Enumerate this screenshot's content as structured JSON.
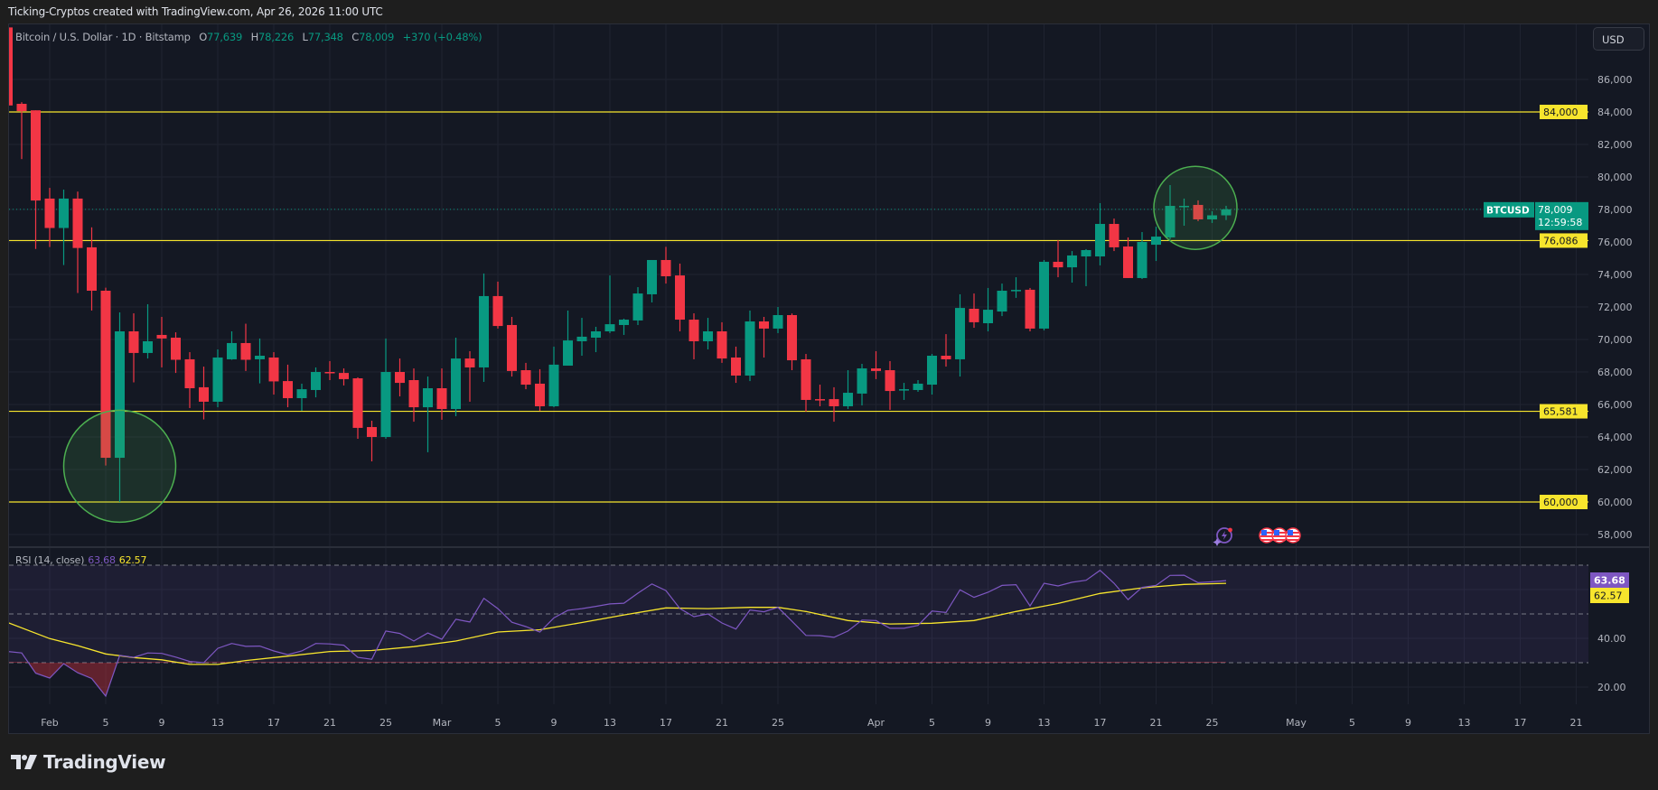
{
  "header": {
    "title": "Ticking-Cryptos created with TradingView.com, Apr 26, 2026 11:00 UTC"
  },
  "legend": {
    "symbol": "Bitcoin / U.S. Dollar · 1D · Bitstamp",
    "o_label": "O",
    "o": "77,639",
    "h_label": "H",
    "h": "78,226",
    "l_label": "L",
    "l": "77,348",
    "c_label": "C",
    "c": "78,009",
    "change": "+370 (+0.48%)"
  },
  "currency_button": "USD",
  "price_tag": {
    "symbol": "BTCUSD",
    "price": "78,009",
    "countdown": "12:59:58"
  },
  "rsi_legend": {
    "name": "RSI (14, close)",
    "rsi": "63.68",
    "ma": "62.57"
  },
  "rsi_tags": {
    "rsi": "63.68",
    "ma": "62.57"
  },
  "footer": {
    "brand": "TradingView"
  },
  "colors": {
    "up": "#089981",
    "down": "#f23645",
    "level": "#f7e52d",
    "rsi": "#7e57c2",
    "rsi_ma": "#f7e52d",
    "highlight": "#4caf50",
    "background": "#141823"
  },
  "icons": [
    "lightning-alert-icon",
    "us-flag-event-icon"
  ],
  "chart_data": {
    "type": "candlestick",
    "symbol": "BTCUSD",
    "price_axis": {
      "ticks": [
        "58,000",
        "60,000",
        "62,000",
        "64,000",
        "66,000",
        "68,000",
        "70,000",
        "72,000",
        "74,000",
        "76,000",
        "78,000",
        "80,000",
        "82,000",
        "84,000",
        "86,000"
      ],
      "ylim": [
        57000,
        87000
      ]
    },
    "horizontal_levels": [
      {
        "value": 84000,
        "label": "84,000"
      },
      {
        "value": 76086,
        "label": "76,086"
      },
      {
        "value": 65581,
        "label": "65,581"
      },
      {
        "value": 60000,
        "label": "60,000"
      }
    ],
    "current_price": 78009,
    "highlight_circles": [
      {
        "date": "2026-02-06",
        "price": 62200
      },
      {
        "date": "2026-04-24",
        "price": 78100
      }
    ],
    "x_ticks": [
      {
        "label": "Feb",
        "date": "2026-02-01"
      },
      {
        "label": "5",
        "date": "2026-02-05"
      },
      {
        "label": "9",
        "date": "2026-02-09"
      },
      {
        "label": "13",
        "date": "2026-02-13"
      },
      {
        "label": "17",
        "date": "2026-02-17"
      },
      {
        "label": "21",
        "date": "2026-02-21"
      },
      {
        "label": "25",
        "date": "2026-02-25"
      },
      {
        "label": "Mar",
        "date": "2026-03-01"
      },
      {
        "label": "5",
        "date": "2026-03-05"
      },
      {
        "label": "9",
        "date": "2026-03-09"
      },
      {
        "label": "13",
        "date": "2026-03-13"
      },
      {
        "label": "17",
        "date": "2026-03-17"
      },
      {
        "label": "21",
        "date": "2026-03-21"
      },
      {
        "label": "25",
        "date": "2026-03-25"
      },
      {
        "label": "Apr",
        "date": "2026-04-01"
      },
      {
        "label": "5",
        "date": "2026-04-05"
      },
      {
        "label": "9",
        "date": "2026-04-09"
      },
      {
        "label": "13",
        "date": "2026-04-13"
      },
      {
        "label": "17",
        "date": "2026-04-17"
      },
      {
        "label": "21",
        "date": "2026-04-21"
      },
      {
        "label": "25",
        "date": "2026-04-25"
      },
      {
        "label": "May",
        "date": "2026-05-01"
      },
      {
        "label": "5",
        "date": "2026-05-05"
      },
      {
        "label": "9",
        "date": "2026-05-09"
      },
      {
        "label": "13",
        "date": "2026-05-13"
      },
      {
        "label": "17",
        "date": "2026-05-17"
      },
      {
        "label": "21",
        "date": "2026-05-21"
      }
    ],
    "rsi_axis": {
      "ticks": [
        "20.00",
        "40.00"
      ],
      "bands": [
        30,
        50,
        70
      ],
      "ylim": [
        12,
        76
      ]
    },
    "candles": [
      {
        "d": "2026-01-29",
        "o": 89200,
        "h": 89500,
        "l": 84000,
        "c": 84400,
        "rsi": 34.6
      },
      {
        "d": "2026-01-30",
        "o": 84500,
        "h": 84600,
        "l": 81100,
        "c": 84050,
        "rsi": 34.0
      },
      {
        "d": "2026-01-31",
        "o": 84100,
        "h": 84100,
        "l": 75570,
        "c": 78550,
        "rsi": 25.7
      },
      {
        "d": "2026-02-01",
        "o": 78670,
        "h": 79330,
        "l": 75690,
        "c": 76860,
        "rsi": 23.7
      },
      {
        "d": "2026-02-02",
        "o": 76860,
        "h": 79220,
        "l": 74580,
        "c": 78670,
        "rsi": 29.6
      },
      {
        "d": "2026-02-03",
        "o": 78670,
        "h": 79100,
        "l": 72860,
        "c": 75630,
        "rsi": 25.9
      },
      {
        "d": "2026-02-04",
        "o": 75670,
        "h": 76900,
        "l": 71780,
        "c": 73000,
        "rsi": 23.5
      },
      {
        "d": "2026-02-05",
        "o": 73000,
        "h": 73190,
        "l": 62240,
        "c": 62720,
        "rsi": 16.3
      },
      {
        "d": "2026-02-06",
        "o": 62720,
        "h": 71670,
        "l": 60000,
        "c": 70500,
        "rsi": 33.0
      },
      {
        "d": "2026-02-07",
        "o": 70500,
        "h": 71610,
        "l": 67360,
        "c": 69170,
        "rsi": 32.2
      },
      {
        "d": "2026-02-08",
        "o": 69170,
        "h": 72170,
        "l": 68830,
        "c": 69890,
        "rsi": 34.0
      },
      {
        "d": "2026-02-09",
        "o": 70280,
        "h": 71390,
        "l": 68280,
        "c": 70060,
        "rsi": 33.8
      },
      {
        "d": "2026-02-10",
        "o": 70110,
        "h": 70440,
        "l": 67940,
        "c": 68750,
        "rsi": 32.3
      },
      {
        "d": "2026-02-11",
        "o": 68780,
        "h": 69220,
        "l": 65780,
        "c": 67000,
        "rsi": 30.5
      },
      {
        "d": "2026-02-12",
        "o": 67060,
        "h": 68330,
        "l": 65080,
        "c": 66170,
        "rsi": 30.0
      },
      {
        "d": "2026-02-13",
        "o": 66170,
        "h": 69390,
        "l": 65830,
        "c": 68890,
        "rsi": 35.9
      },
      {
        "d": "2026-02-14",
        "o": 68780,
        "h": 70500,
        "l": 68750,
        "c": 69780,
        "rsi": 37.9
      },
      {
        "d": "2026-02-15",
        "o": 69780,
        "h": 70970,
        "l": 68060,
        "c": 68750,
        "rsi": 36.7
      },
      {
        "d": "2026-02-16",
        "o": 68780,
        "h": 70060,
        "l": 67300,
        "c": 69000,
        "rsi": 36.8
      },
      {
        "d": "2026-02-17",
        "o": 68890,
        "h": 69220,
        "l": 66610,
        "c": 67420,
        "rsi": 34.8
      },
      {
        "d": "2026-02-18",
        "o": 67440,
        "h": 68450,
        "l": 65830,
        "c": 66390,
        "rsi": 33.3
      },
      {
        "d": "2026-02-19",
        "o": 66390,
        "h": 67280,
        "l": 65610,
        "c": 66940,
        "rsi": 34.8
      },
      {
        "d": "2026-02-20",
        "o": 66890,
        "h": 68280,
        "l": 66440,
        "c": 68000,
        "rsi": 37.9
      },
      {
        "d": "2026-02-21",
        "o": 68000,
        "h": 68670,
        "l": 67500,
        "c": 67970,
        "rsi": 37.7
      },
      {
        "d": "2026-02-22",
        "o": 67940,
        "h": 68220,
        "l": 67170,
        "c": 67560,
        "rsi": 37.2
      },
      {
        "d": "2026-02-23",
        "o": 67610,
        "h": 67670,
        "l": 63890,
        "c": 64560,
        "rsi": 32.2
      },
      {
        "d": "2026-02-24",
        "o": 64610,
        "h": 65000,
        "l": 62500,
        "c": 64000,
        "rsi": 31.4
      },
      {
        "d": "2026-02-25",
        "o": 64000,
        "h": 70060,
        "l": 63890,
        "c": 68000,
        "rsi": 43.0
      },
      {
        "d": "2026-02-26",
        "o": 68000,
        "h": 68830,
        "l": 66500,
        "c": 67330,
        "rsi": 42.0
      },
      {
        "d": "2026-02-27",
        "o": 67500,
        "h": 68220,
        "l": 64940,
        "c": 65830,
        "rsi": 38.9
      },
      {
        "d": "2026-02-28",
        "o": 65830,
        "h": 67720,
        "l": 63060,
        "c": 67000,
        "rsi": 42.2
      },
      {
        "d": "2026-03-01",
        "o": 67000,
        "h": 68220,
        "l": 65060,
        "c": 65720,
        "rsi": 39.6
      },
      {
        "d": "2026-03-02",
        "o": 65720,
        "h": 70110,
        "l": 65280,
        "c": 68830,
        "rsi": 47.8
      },
      {
        "d": "2026-03-03",
        "o": 68830,
        "h": 69280,
        "l": 66170,
        "c": 68280,
        "rsi": 46.7
      },
      {
        "d": "2026-03-04",
        "o": 68280,
        "h": 74060,
        "l": 67390,
        "c": 72670,
        "rsi": 56.4
      },
      {
        "d": "2026-03-05",
        "o": 72670,
        "h": 73560,
        "l": 70670,
        "c": 70830,
        "rsi": 52.2
      },
      {
        "d": "2026-03-06",
        "o": 70890,
        "h": 71390,
        "l": 67720,
        "c": 68060,
        "rsi": 46.6
      },
      {
        "d": "2026-03-07",
        "o": 68110,
        "h": 68560,
        "l": 66940,
        "c": 67220,
        "rsi": 44.8
      },
      {
        "d": "2026-03-08",
        "o": 67280,
        "h": 68170,
        "l": 65610,
        "c": 65890,
        "rsi": 42.6
      },
      {
        "d": "2026-03-09",
        "o": 65890,
        "h": 69560,
        "l": 65830,
        "c": 68450,
        "rsi": 48.4
      },
      {
        "d": "2026-03-10",
        "o": 68390,
        "h": 71780,
        "l": 68390,
        "c": 69940,
        "rsi": 51.5
      },
      {
        "d": "2026-03-11",
        "o": 69890,
        "h": 71330,
        "l": 69000,
        "c": 70170,
        "rsi": 52.2
      },
      {
        "d": "2026-03-12",
        "o": 70110,
        "h": 70780,
        "l": 69220,
        "c": 70500,
        "rsi": 53.1
      },
      {
        "d": "2026-03-13",
        "o": 70500,
        "h": 73940,
        "l": 70390,
        "c": 70940,
        "rsi": 54.1
      },
      {
        "d": "2026-03-14",
        "o": 70890,
        "h": 71280,
        "l": 70280,
        "c": 71220,
        "rsi": 54.4
      },
      {
        "d": "2026-03-15",
        "o": 71170,
        "h": 73220,
        "l": 70890,
        "c": 72830,
        "rsi": 58.5
      },
      {
        "d": "2026-03-16",
        "o": 72780,
        "h": 74890,
        "l": 72280,
        "c": 74890,
        "rsi": 62.3
      },
      {
        "d": "2026-03-17",
        "o": 74890,
        "h": 75700,
        "l": 73440,
        "c": 73890,
        "rsi": 59.6
      },
      {
        "d": "2026-03-18",
        "o": 73940,
        "h": 74670,
        "l": 70500,
        "c": 71220,
        "rsi": 52.2
      },
      {
        "d": "2026-03-19",
        "o": 71220,
        "h": 71610,
        "l": 68780,
        "c": 69890,
        "rsi": 48.9
      },
      {
        "d": "2026-03-20",
        "o": 69890,
        "h": 71330,
        "l": 69390,
        "c": 70500,
        "rsi": 50.0
      },
      {
        "d": "2026-03-21",
        "o": 70500,
        "h": 71060,
        "l": 68560,
        "c": 68830,
        "rsi": 46.3
      },
      {
        "d": "2026-03-22",
        "o": 68890,
        "h": 69560,
        "l": 67330,
        "c": 67780,
        "rsi": 43.8
      },
      {
        "d": "2026-03-23",
        "o": 67780,
        "h": 71780,
        "l": 67440,
        "c": 71110,
        "rsi": 51.6
      },
      {
        "d": "2026-03-24",
        "o": 71110,
        "h": 71390,
        "l": 68890,
        "c": 70670,
        "rsi": 50.9
      },
      {
        "d": "2026-03-25",
        "o": 70670,
        "h": 72000,
        "l": 70390,
        "c": 71500,
        "rsi": 52.7
      },
      {
        "d": "2026-03-26",
        "o": 71500,
        "h": 71600,
        "l": 68110,
        "c": 68720,
        "rsi": 47.0
      },
      {
        "d": "2026-03-27",
        "o": 68780,
        "h": 69110,
        "l": 65560,
        "c": 66280,
        "rsi": 41.2
      },
      {
        "d": "2026-03-28",
        "o": 66330,
        "h": 67220,
        "l": 65890,
        "c": 66280,
        "rsi": 41.1
      },
      {
        "d": "2026-03-29",
        "o": 66330,
        "h": 67060,
        "l": 64940,
        "c": 65890,
        "rsi": 40.4
      },
      {
        "d": "2026-03-30",
        "o": 65890,
        "h": 68110,
        "l": 65720,
        "c": 66720,
        "rsi": 43.0
      },
      {
        "d": "2026-03-31",
        "o": 66670,
        "h": 68500,
        "l": 65940,
        "c": 68220,
        "rsi": 47.5
      },
      {
        "d": "2026-04-01",
        "o": 68220,
        "h": 69280,
        "l": 67560,
        "c": 68060,
        "rsi": 47.3
      },
      {
        "d": "2026-04-02",
        "o": 68110,
        "h": 68670,
        "l": 65670,
        "c": 66830,
        "rsi": 44.1
      },
      {
        "d": "2026-04-03",
        "o": 66890,
        "h": 67330,
        "l": 66280,
        "c": 66940,
        "rsi": 44.1
      },
      {
        "d": "2026-04-04",
        "o": 66890,
        "h": 67500,
        "l": 66780,
        "c": 67280,
        "rsi": 45.3
      },
      {
        "d": "2026-04-05",
        "o": 67220,
        "h": 69110,
        "l": 66610,
        "c": 69000,
        "rsi": 51.2
      },
      {
        "d": "2026-04-06",
        "o": 69000,
        "h": 70330,
        "l": 68330,
        "c": 68780,
        "rsi": 50.6
      },
      {
        "d": "2026-04-07",
        "o": 68780,
        "h": 72780,
        "l": 67720,
        "c": 71940,
        "rsi": 59.9
      },
      {
        "d": "2026-04-08",
        "o": 71890,
        "h": 72830,
        "l": 70720,
        "c": 71060,
        "rsi": 56.8
      },
      {
        "d": "2026-04-09",
        "o": 71000,
        "h": 73170,
        "l": 70500,
        "c": 71830,
        "rsi": 58.9
      },
      {
        "d": "2026-04-10",
        "o": 71720,
        "h": 73440,
        "l": 71440,
        "c": 73000,
        "rsi": 61.7
      },
      {
        "d": "2026-04-11",
        "o": 72980,
        "h": 73830,
        "l": 72560,
        "c": 73050,
        "rsi": 62.0
      },
      {
        "d": "2026-04-12",
        "o": 73060,
        "h": 73170,
        "l": 70500,
        "c": 70670,
        "rsi": 53.3
      },
      {
        "d": "2026-04-13",
        "o": 70670,
        "h": 74890,
        "l": 70560,
        "c": 74780,
        "rsi": 62.6
      },
      {
        "d": "2026-04-14",
        "o": 74780,
        "h": 76110,
        "l": 73830,
        "c": 74440,
        "rsi": 61.5
      },
      {
        "d": "2026-04-15",
        "o": 74440,
        "h": 75440,
        "l": 73500,
        "c": 75170,
        "rsi": 63.0
      },
      {
        "d": "2026-04-16",
        "o": 75110,
        "h": 75560,
        "l": 73280,
        "c": 75500,
        "rsi": 63.8
      },
      {
        "d": "2026-04-17",
        "o": 75110,
        "h": 78390,
        "l": 74560,
        "c": 77110,
        "rsi": 67.9
      },
      {
        "d": "2026-04-18",
        "o": 77110,
        "h": 77440,
        "l": 75440,
        "c": 75670,
        "rsi": 62.6
      },
      {
        "d": "2026-04-19",
        "o": 75720,
        "h": 76280,
        "l": 73780,
        "c": 73780,
        "rsi": 55.9
      },
      {
        "d": "2026-04-20",
        "o": 73780,
        "h": 76610,
        "l": 73720,
        "c": 76000,
        "rsi": 60.9
      },
      {
        "d": "2026-04-21",
        "o": 75830,
        "h": 76940,
        "l": 74830,
        "c": 76330,
        "rsi": 61.7
      },
      {
        "d": "2026-04-22",
        "o": 76280,
        "h": 79500,
        "l": 76170,
        "c": 78220,
        "rsi": 65.8
      },
      {
        "d": "2026-04-23",
        "o": 78170,
        "h": 78670,
        "l": 77000,
        "c": 78220,
        "rsi": 65.9
      },
      {
        "d": "2026-04-24",
        "o": 78280,
        "h": 78560,
        "l": 77280,
        "c": 77390,
        "rsi": 62.8
      },
      {
        "d": "2026-04-25",
        "o": 77390,
        "h": 77890,
        "l": 77170,
        "c": 77639,
        "rsi": 63.2
      },
      {
        "d": "2026-04-26",
        "o": 77639,
        "h": 78226,
        "l": 77348,
        "c": 78009,
        "rsi": 63.68
      }
    ],
    "rsi_ma": [
      {
        "d": "2026-01-29",
        "v": 46.5
      },
      {
        "d": "2026-02-01",
        "v": 39.9
      },
      {
        "d": "2026-02-03",
        "v": 37.0
      },
      {
        "d": "2026-02-05",
        "v": 33.6
      },
      {
        "d": "2026-02-07",
        "v": 32.1
      },
      {
        "d": "2026-02-09",
        "v": 31.2
      },
      {
        "d": "2026-02-11",
        "v": 29.3
      },
      {
        "d": "2026-02-13",
        "v": 29.3
      },
      {
        "d": "2026-02-15",
        "v": 30.9
      },
      {
        "d": "2026-02-18",
        "v": 32.7
      },
      {
        "d": "2026-02-21",
        "v": 34.6
      },
      {
        "d": "2026-02-24",
        "v": 35.0
      },
      {
        "d": "2026-02-27",
        "v": 36.6
      },
      {
        "d": "2026-03-02",
        "v": 38.9
      },
      {
        "d": "2026-03-05",
        "v": 42.6
      },
      {
        "d": "2026-03-08",
        "v": 43.5
      },
      {
        "d": "2026-03-11",
        "v": 46.5
      },
      {
        "d": "2026-03-14",
        "v": 49.6
      },
      {
        "d": "2026-03-17",
        "v": 52.5
      },
      {
        "d": "2026-03-20",
        "v": 52.2
      },
      {
        "d": "2026-03-23",
        "v": 52.7
      },
      {
        "d": "2026-03-25",
        "v": 52.7
      },
      {
        "d": "2026-03-27",
        "v": 51.0
      },
      {
        "d": "2026-03-30",
        "v": 47.3
      },
      {
        "d": "2026-04-02",
        "v": 45.9
      },
      {
        "d": "2026-04-05",
        "v": 46.2
      },
      {
        "d": "2026-04-08",
        "v": 47.3
      },
      {
        "d": "2026-04-11",
        "v": 51.0
      },
      {
        "d": "2026-04-14",
        "v": 54.3
      },
      {
        "d": "2026-04-17",
        "v": 58.4
      },
      {
        "d": "2026-04-20",
        "v": 60.7
      },
      {
        "d": "2026-04-23",
        "v": 62.1
      },
      {
        "d": "2026-04-26",
        "v": 62.57
      }
    ]
  }
}
